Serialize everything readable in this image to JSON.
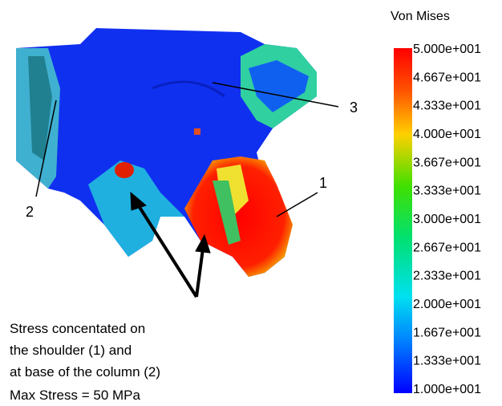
{
  "legend": {
    "title": "Von Mises",
    "labels": [
      "5.000e+001",
      "4.667e+001",
      "4.333e+001",
      "4.000e+001",
      "3.667e+001",
      "3.333e+001",
      "3.000e+001",
      "2.667e+001",
      "2.333e+001",
      "2.000e+001",
      "1.667e+001",
      "1.333e+001",
      "1.000e+001"
    ]
  },
  "callouts": [
    "1",
    "2",
    "3"
  ],
  "caption": [
    "Stress concentated on",
    "the shoulder (1) and",
    "at base of the column (2)",
    "Max Stress =  50 MPa"
  ]
}
